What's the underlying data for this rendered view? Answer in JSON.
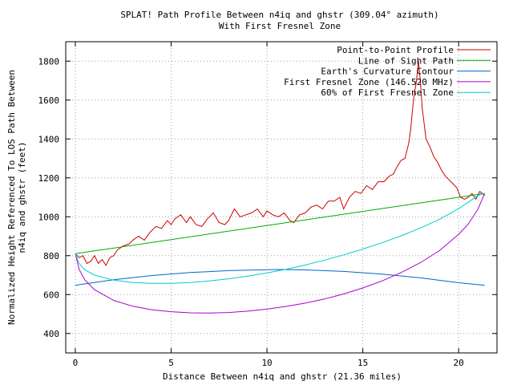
{
  "chart_data": {
    "type": "line",
    "title": "SPLAT! Path Profile Between n4iq and ghstr (309.04° azimuth)",
    "subtitle": "With First Fresnel Zone",
    "xlabel": "Distance Between n4iq and ghstr (21.36 miles)",
    "ylabel": "Normalized Height Referenced To LOS Path Between n4iq and ghstr (feet)",
    "ylabel_lines": [
      "Normalized Height Referenced To LOS Path Between",
      "n4iq and ghstr (feet)"
    ],
    "xlim": [
      -0.5,
      22
    ],
    "ylim": [
      300,
      1900
    ],
    "xticks": [
      0,
      5,
      10,
      15,
      20
    ],
    "yticks": [
      400,
      600,
      800,
      1000,
      1200,
      1400,
      1600,
      1800
    ],
    "grid": true,
    "legend_position": "top-right",
    "series": [
      {
        "name": "Point-to-Point Profile",
        "color": "#cc0000",
        "x": [
          0,
          0.2,
          0.4,
          0.6,
          0.8,
          1.0,
          1.2,
          1.4,
          1.6,
          1.8,
          2.0,
          2.2,
          2.5,
          2.8,
          3.0,
          3.3,
          3.6,
          3.9,
          4.2,
          4.5,
          4.8,
          5.0,
          5.2,
          5.5,
          5.8,
          6.0,
          6.3,
          6.6,
          6.9,
          7.2,
          7.5,
          7.8,
          8.0,
          8.3,
          8.6,
          8.9,
          9.2,
          9.5,
          9.8,
          10.0,
          10.3,
          10.6,
          10.9,
          11.2,
          11.4,
          11.7,
          12.0,
          12.3,
          12.6,
          12.9,
          13.2,
          13.5,
          13.8,
          14.0,
          14.3,
          14.6,
          14.9,
          15.2,
          15.5,
          15.8,
          16.1,
          16.4,
          16.6,
          16.8,
          17.0,
          17.2,
          17.4,
          17.5,
          17.6,
          17.7,
          17.8,
          17.9,
          18.0,
          18.1,
          18.2,
          18.3,
          18.5,
          18.7,
          18.9,
          19.1,
          19.3,
          19.5,
          19.7,
          19.9,
          20.1,
          20.3,
          20.5,
          20.7,
          20.9,
          21.1,
          21.36
        ],
        "y": [
          810,
          790,
          800,
          760,
          770,
          800,
          760,
          780,
          750,
          790,
          800,
          830,
          850,
          860,
          880,
          900,
          880,
          920,
          950,
          940,
          980,
          960,
          990,
          1010,
          970,
          1000,
          960,
          950,
          990,
          1020,
          970,
          960,
          980,
          1040,
          1000,
          1010,
          1020,
          1040,
          1000,
          1030,
          1010,
          1000,
          1020,
          980,
          970,
          1010,
          1020,
          1050,
          1060,
          1040,
          1080,
          1080,
          1100,
          1040,
          1100,
          1130,
          1120,
          1160,
          1140,
          1180,
          1180,
          1210,
          1220,
          1260,
          1290,
          1300,
          1380,
          1450,
          1560,
          1640,
          1700,
          1800,
          1700,
          1560,
          1480,
          1400,
          1360,
          1310,
          1280,
          1240,
          1210,
          1190,
          1170,
          1150,
          1100,
          1090,
          1100,
          1120,
          1090,
          1130,
          1110
        ]
      },
      {
        "name": "Line of Sight Path",
        "color": "#00aa00",
        "x": [
          0,
          21.36
        ],
        "y": [
          810,
          1120
        ]
      },
      {
        "name": "Earth's Curvature Contour",
        "color": "#0066cc",
        "x": [
          0,
          2,
          4,
          6,
          8,
          10,
          10.68,
          12,
          14,
          16,
          18,
          20,
          21.36
        ],
        "y": [
          648,
          676,
          698,
          713,
          723,
          728,
          729,
          727,
          719,
          705,
          686,
          661,
          648
        ]
      },
      {
        "name": "First Fresnel Zone (146.520 MHz)",
        "color": "#aa00cc",
        "x": [
          0,
          0.2,
          0.5,
          1,
          2,
          3,
          4,
          5,
          6,
          7,
          8,
          9,
          10,
          11,
          12,
          13,
          14,
          15,
          16,
          17,
          18,
          19,
          20,
          20.5,
          21,
          21.36
        ],
        "y": [
          810,
          730,
          675,
          625,
          570,
          540,
          522,
          512,
          506,
          505,
          508,
          515,
          525,
          539,
          556,
          577,
          603,
          634,
          670,
          713,
          764,
          826,
          910,
          962,
          1038,
          1120
        ]
      },
      {
        "name": "60% of First Fresnel Zone",
        "color": "#00cccc",
        "x": [
          0,
          0.2,
          0.5,
          1,
          2,
          3,
          4,
          5,
          6,
          7,
          8,
          9,
          10,
          11,
          12,
          13,
          14,
          15,
          16,
          17,
          18,
          19,
          20,
          20.5,
          21,
          21.36
        ],
        "y": [
          810,
          760,
          727,
          700,
          674,
          662,
          658,
          658,
          662,
          670,
          681,
          695,
          711,
          730,
          752,
          777,
          804,
          834,
          866,
          902,
          942,
          987,
          1042,
          1074,
          1110,
          1120
        ]
      }
    ]
  }
}
